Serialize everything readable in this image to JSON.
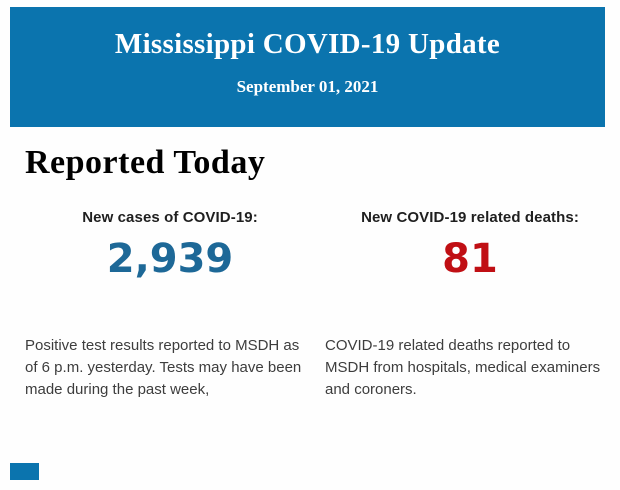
{
  "page": {
    "background_color": "#fefefe"
  },
  "header": {
    "title": "Mississippi COVID-19 Update",
    "date": "September 01, 2021",
    "bg_color": "#0b74ae",
    "text_color": "#ffffff"
  },
  "section": {
    "title": "Reported Today"
  },
  "stats": [
    {
      "label": "New cases of COVID-19:",
      "value": "2,939",
      "value_color": "#1d6897",
      "description": "Positive test results reported to MSDH as of 6 p.m. yesterday. Tests may have been made during the past week,"
    },
    {
      "label": "New COVID-19 related deaths:",
      "value": "81",
      "value_color": "#c00f14",
      "description": "COVID-19 related deaths reported to MSDH from hospitals, medical examiners and coroners."
    }
  ],
  "footer": {
    "partial_block_color": "#0b74ae"
  }
}
